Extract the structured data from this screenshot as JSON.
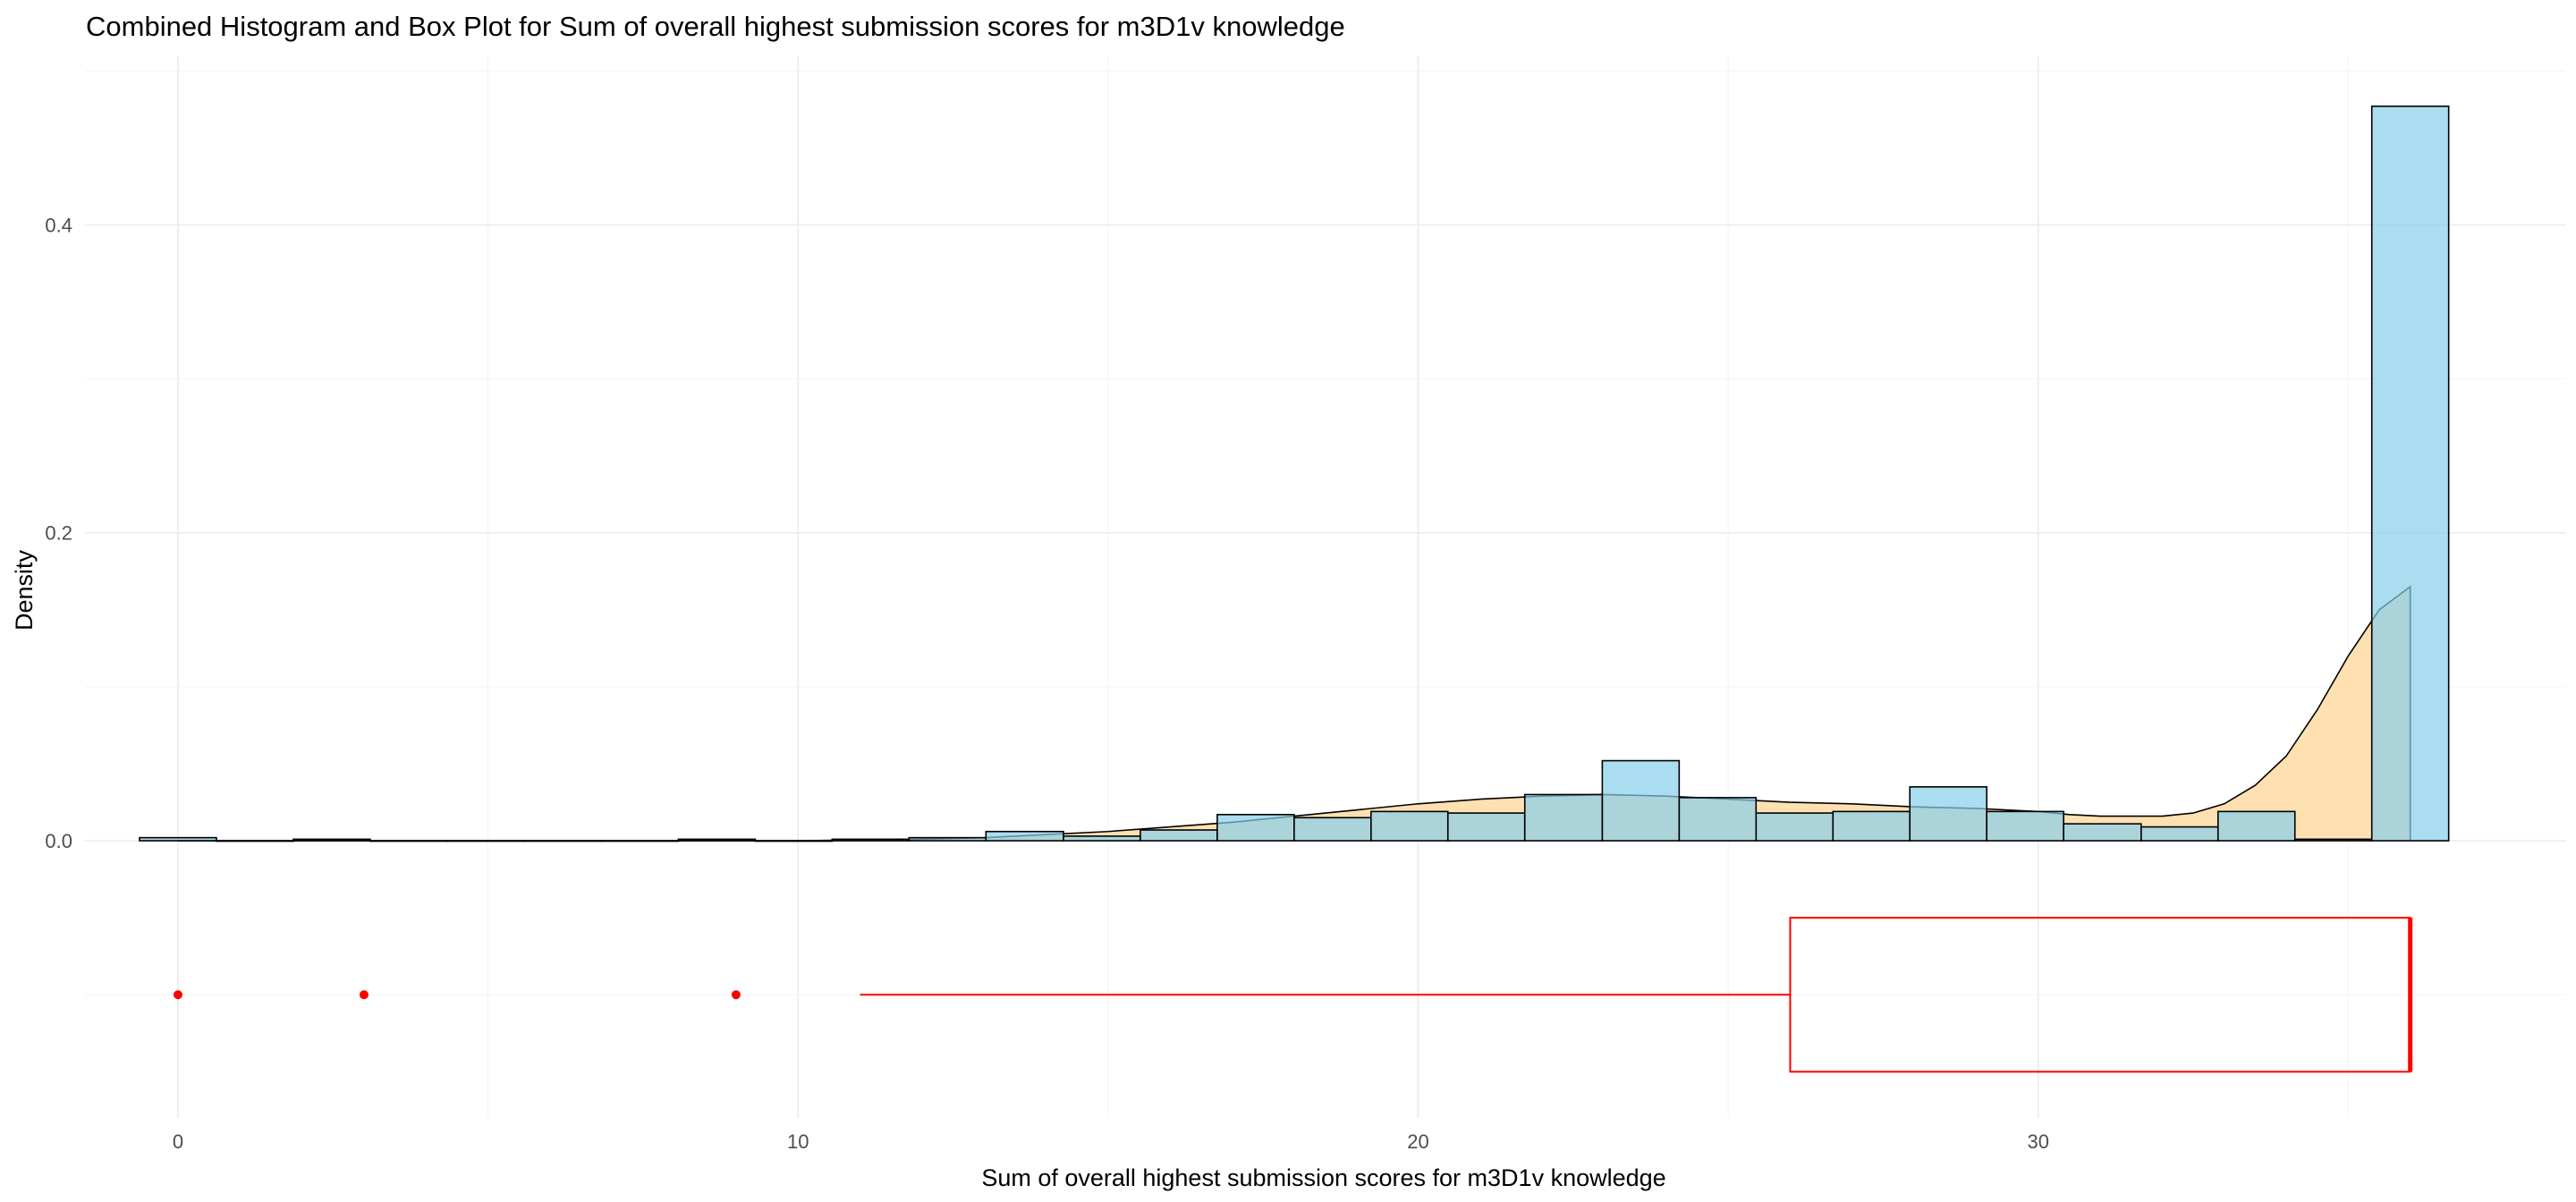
{
  "chart_data": {
    "type": "histogram",
    "title": "Combined Histogram and Box Plot for Sum of overall highest submission scores for m3D1v knowledge",
    "xlabel": "Sum of overall highest submission scores for m3D1v knowledge",
    "ylabel": "Density",
    "xlim": [
      -1.5,
      38.5
    ],
    "ylim": [
      -0.18,
      0.51
    ],
    "x_ticks": [
      0,
      10,
      20,
      30
    ],
    "y_ticks": [
      0.0,
      0.2,
      0.4
    ],
    "y_tick_labels": [
      "0.0",
      "0.2",
      "0.4"
    ],
    "grid": true,
    "histogram": {
      "fill": "#87CEEB",
      "stroke": "#000000",
      "bins": [
        {
          "x0": -0.62,
          "x1": 0.62,
          "density": 0.002
        },
        {
          "x0": 0.62,
          "x1": 1.86,
          "density": 0.0
        },
        {
          "x0": 1.86,
          "x1": 3.1,
          "density": 0.001
        },
        {
          "x0": 3.1,
          "x1": 4.34,
          "density": 0.0
        },
        {
          "x0": 4.34,
          "x1": 5.59,
          "density": 0.0
        },
        {
          "x0": 5.59,
          "x1": 6.83,
          "density": 0.0
        },
        {
          "x0": 6.83,
          "x1": 8.07,
          "density": 0.0
        },
        {
          "x0": 8.07,
          "x1": 9.31,
          "density": 0.001
        },
        {
          "x0": 9.31,
          "x1": 10.55,
          "density": 0.0
        },
        {
          "x0": 10.55,
          "x1": 11.79,
          "density": 0.001
        },
        {
          "x0": 11.79,
          "x1": 13.03,
          "density": 0.002
        },
        {
          "x0": 13.03,
          "x1": 14.28,
          "density": 0.006
        },
        {
          "x0": 14.28,
          "x1": 15.52,
          "density": 0.003
        },
        {
          "x0": 15.52,
          "x1": 16.76,
          "density": 0.007
        },
        {
          "x0": 16.76,
          "x1": 18.0,
          "density": 0.017
        },
        {
          "x0": 18.0,
          "x1": 19.24,
          "density": 0.015
        },
        {
          "x0": 19.24,
          "x1": 20.48,
          "density": 0.019
        },
        {
          "x0": 20.48,
          "x1": 21.72,
          "density": 0.018
        },
        {
          "x0": 21.72,
          "x1": 22.97,
          "density": 0.03
        },
        {
          "x0": 22.97,
          "x1": 24.21,
          "density": 0.052
        },
        {
          "x0": 24.21,
          "x1": 25.45,
          "density": 0.028
        },
        {
          "x0": 25.45,
          "x1": 26.69,
          "density": 0.018
        },
        {
          "x0": 26.69,
          "x1": 27.93,
          "density": 0.019
        },
        {
          "x0": 27.93,
          "x1": 29.17,
          "density": 0.035
        },
        {
          "x0": 29.17,
          "x1": 30.41,
          "density": 0.019
        },
        {
          "x0": 30.41,
          "x1": 31.66,
          "density": 0.011
        },
        {
          "x0": 31.66,
          "x1": 32.9,
          "density": 0.009
        },
        {
          "x0": 32.9,
          "x1": 34.14,
          "density": 0.019
        },
        {
          "x0": 34.14,
          "x1": 35.38,
          "density": 0.001
        },
        {
          "x0": 35.38,
          "x1": 36.62,
          "density": 0.477
        }
      ]
    },
    "density_curve": {
      "fill": "#FFDEAD",
      "stroke": "#000000",
      "x": [
        0,
        2,
        4,
        6,
        8,
        10,
        11,
        12,
        13,
        14,
        15,
        16,
        17,
        18,
        19,
        20,
        21,
        22,
        23,
        24,
        25,
        26,
        27,
        28,
        29,
        30,
        30.5,
        31,
        31.5,
        32,
        32.5,
        33,
        33.5,
        34,
        34.5,
        35,
        35.5,
        36
      ],
      "y": [
        0.0,
        0.0,
        0.0,
        0.0,
        0.0,
        0.0,
        0.0005,
        0.001,
        0.002,
        0.004,
        0.006,
        0.009,
        0.012,
        0.016,
        0.02,
        0.024,
        0.027,
        0.029,
        0.03,
        0.029,
        0.027,
        0.025,
        0.024,
        0.022,
        0.021,
        0.019,
        0.017,
        0.016,
        0.016,
        0.016,
        0.018,
        0.024,
        0.036,
        0.055,
        0.085,
        0.12,
        0.15,
        0.165
      ]
    },
    "boxplot": {
      "color": "#FF0000",
      "y_center": -0.1,
      "y_half_height": 0.05,
      "whisker_low": 11,
      "q1": 26,
      "median": 36,
      "q3": 36,
      "outliers": [
        0,
        3,
        9
      ]
    }
  }
}
